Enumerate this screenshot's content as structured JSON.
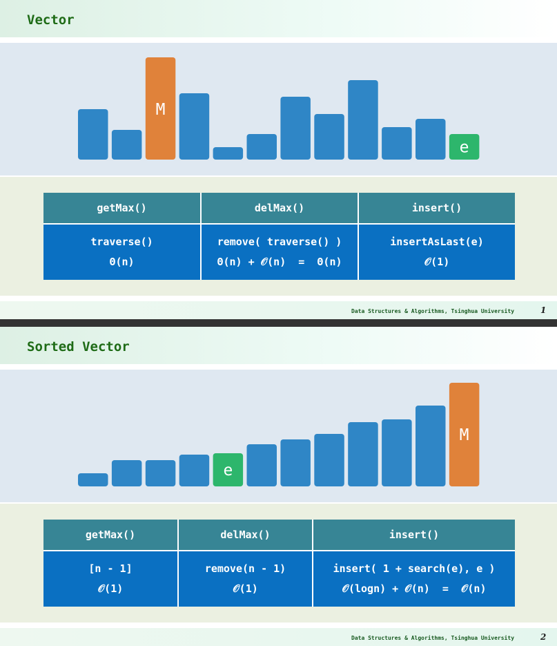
{
  "slides": [
    {
      "title": "Vector",
      "bars": [
        {
          "value": 73,
          "kind": "normal",
          "label": ""
        },
        {
          "value": 43,
          "kind": "normal",
          "label": ""
        },
        {
          "value": 148,
          "kind": "max",
          "label": "M"
        },
        {
          "value": 96,
          "kind": "normal",
          "label": ""
        },
        {
          "value": 18,
          "kind": "normal",
          "label": ""
        },
        {
          "value": 37,
          "kind": "normal",
          "label": ""
        },
        {
          "value": 91,
          "kind": "normal",
          "label": ""
        },
        {
          "value": 66,
          "kind": "normal",
          "label": ""
        },
        {
          "value": 115,
          "kind": "normal",
          "label": ""
        },
        {
          "value": 47,
          "kind": "normal",
          "label": ""
        },
        {
          "value": 59,
          "kind": "normal",
          "label": ""
        },
        {
          "value": 37,
          "kind": "new",
          "label": "e"
        }
      ],
      "table": {
        "headers": [
          "getMax()",
          "delMax()",
          "insert()"
        ],
        "cells": [
          [
            "traverse()",
            "Θ(n)"
          ],
          [
            "remove( traverse() )",
            "Θ(n) + 𝒪(n)  =  Θ(n)"
          ],
          [
            "insertAsLast(e)",
            "𝒪(1)"
          ]
        ]
      },
      "footer": "Data Structures & Algorithms, Tsinghua University",
      "page": "1"
    },
    {
      "title": "Sorted Vector",
      "bars": [
        {
          "value": 19,
          "kind": "normal",
          "label": ""
        },
        {
          "value": 38,
          "kind": "normal",
          "label": ""
        },
        {
          "value": 38,
          "kind": "normal",
          "label": ""
        },
        {
          "value": 46,
          "kind": "normal",
          "label": ""
        },
        {
          "value": 48,
          "kind": "new",
          "label": "e"
        },
        {
          "value": 61,
          "kind": "normal",
          "label": ""
        },
        {
          "value": 68,
          "kind": "normal",
          "label": ""
        },
        {
          "value": 76,
          "kind": "normal",
          "label": ""
        },
        {
          "value": 93,
          "kind": "normal",
          "label": ""
        },
        {
          "value": 97,
          "kind": "normal",
          "label": ""
        },
        {
          "value": 117,
          "kind": "normal",
          "label": ""
        },
        {
          "value": 150,
          "kind": "max",
          "label": "M"
        }
      ],
      "table": {
        "headers": [
          "getMax()",
          "delMax()",
          "insert()"
        ],
        "cells": [
          [
            "[n - 1]",
            "𝒪(1)"
          ],
          [
            "remove(n - 1)",
            "𝒪(1)"
          ],
          [
            "insert( 1 + search(e), e )",
            "𝒪(logn) + 𝒪(n)  =  𝒪(n)"
          ]
        ]
      },
      "footer": "Data Structures & Algorithms, Tsinghua University",
      "page": "2"
    }
  ],
  "colors": {
    "normal": "#2f86c6",
    "max": "#e0823a",
    "new": "#2db66c"
  }
}
